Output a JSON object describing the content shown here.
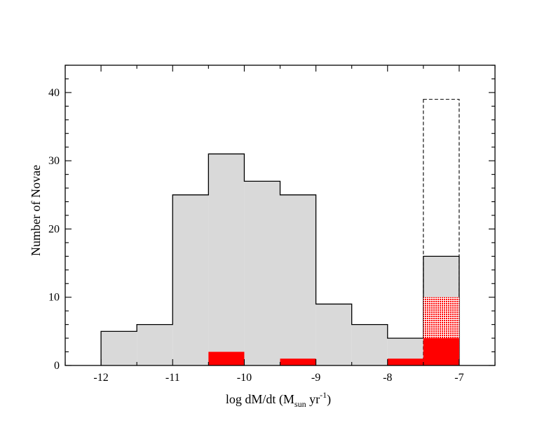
{
  "chart_data": {
    "type": "bar",
    "subtype": "step-histogram",
    "title": "",
    "xlabel": {
      "main": "log dM/dt (M",
      "subscript": "sun",
      "middle": " yr",
      "superscript": "-1",
      "end": ")"
    },
    "ylabel": "Number of Novae",
    "xlim": [
      -12.5,
      -6.5
    ],
    "ylim": [
      0,
      44
    ],
    "grid": false,
    "legend": "none",
    "x_ticks": [
      -12,
      -11,
      -10,
      -9,
      -8,
      -7
    ],
    "x_tick_labels": [
      "-12",
      "-11",
      "-10",
      "-9",
      "-8",
      "-7"
    ],
    "y_ticks": [
      0,
      10,
      20,
      30,
      40
    ],
    "y_tick_labels": [
      "0",
      "10",
      "20",
      "30",
      "40"
    ],
    "bin_edges": [
      -12,
      -11.5,
      -11,
      -10.5,
      -10,
      -9.5,
      -9,
      -8.5,
      -8,
      -7.5,
      -7
    ],
    "series": [
      {
        "style": "grey-filled-step",
        "values": [
          5,
          6,
          25,
          31,
          27,
          25,
          9,
          6,
          4,
          16
        ],
        "fill": "#d9d9d9",
        "stroke": "#000000"
      },
      {
        "style": "dashed-outline",
        "bins": [
          [
            -7.5,
            -7,
            39
          ]
        ],
        "stroke": "#000000"
      },
      {
        "style": "red-hatched",
        "bins": [
          [
            -7.5,
            -7,
            10
          ]
        ],
        "fill": "#ff0000"
      },
      {
        "style": "red-solid",
        "bins": [
          [
            -10.5,
            -10,
            2
          ],
          [
            -9.5,
            -9,
            1
          ],
          [
            -8,
            -7.5,
            1
          ],
          [
            -7.5,
            -7,
            4
          ]
        ],
        "fill": "#ff0000"
      }
    ]
  }
}
